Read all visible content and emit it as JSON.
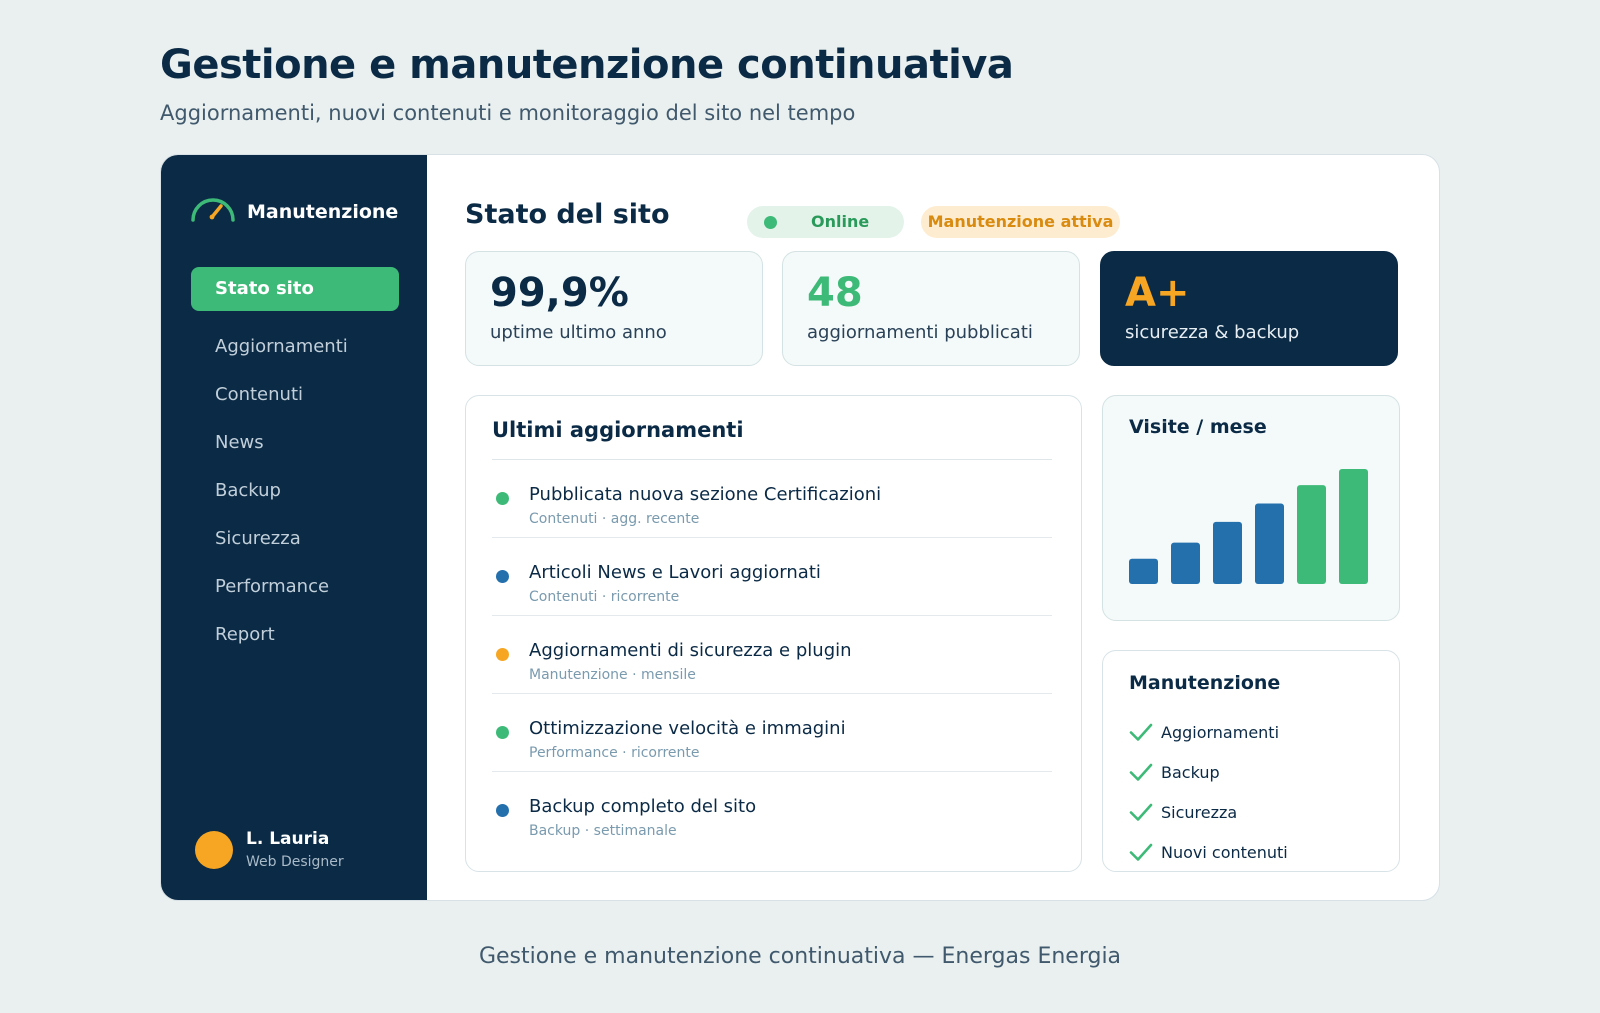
{
  "header": {
    "title": "Gestione e manutenzione continuativa",
    "subtitle": "Aggiornamenti, nuovi contenuti e monitoraggio del sito nel tempo"
  },
  "footer": {
    "caption": "Gestione e manutenzione continuativa — Energas Energia"
  },
  "sidebar": {
    "brand": {
      "label": "Manutenzione",
      "icon": "gauge-icon"
    },
    "items": [
      {
        "label": "Stato sito",
        "active": true
      },
      {
        "label": "Aggiornamenti"
      },
      {
        "label": "Contenuti"
      },
      {
        "label": "News"
      },
      {
        "label": "Backup"
      },
      {
        "label": "Sicurezza"
      },
      {
        "label": "Performance"
      },
      {
        "label": "Report"
      }
    ],
    "user": {
      "name": "L. Lauria",
      "role": "Web Designer"
    }
  },
  "main": {
    "title": "Stato del sito",
    "status_online": "Online",
    "status_maintenance": "Manutenzione attiva",
    "metrics": [
      {
        "value": "99,9%",
        "label": "uptime ultimo anno"
      },
      {
        "value": "48",
        "label": "aggiornamenti pubblicati"
      },
      {
        "value": "A+",
        "label": "sicurezza & backup"
      }
    ],
    "updates": {
      "title": "Ultimi aggiornamenti",
      "items": [
        {
          "title": "Pubblicata nuova sezione Certificazioni",
          "meta": "Contenuti · agg. recente",
          "color": "#3dba77"
        },
        {
          "title": "Articoli News e Lavori aggiornati",
          "meta": "Contenuti · ricorrente",
          "color": "#2370ad"
        },
        {
          "title": "Aggiornamenti di sicurezza e plugin",
          "meta": "Manutenzione · mensile",
          "color": "#f6a623"
        },
        {
          "title": "Ottimizzazione velocità e immagini",
          "meta": "Performance · ricorrente",
          "color": "#3dba77"
        },
        {
          "title": "Backup completo del sito",
          "meta": "Backup · settimanale",
          "color": "#2370ad"
        }
      ]
    },
    "checklist": {
      "title": "Manutenzione",
      "items": [
        "Aggiornamenti",
        "Backup",
        "Sicurezza",
        "Nuovi contenuti"
      ]
    }
  },
  "chart_data": {
    "type": "bar",
    "title": "Visite / mese",
    "values": [
      22,
      36,
      54,
      70,
      86,
      100
    ],
    "bar_colors": [
      "#2370ad",
      "#2370ad",
      "#2370ad",
      "#2370ad",
      "#3dba77",
      "#3dba77"
    ],
    "ylim": [
      0,
      100
    ]
  },
  "colors": {
    "navy": "#0b2a45",
    "green": "#3dba77",
    "blue": "#2370ad",
    "orange": "#f6a623",
    "background": "#e9f0ef"
  }
}
